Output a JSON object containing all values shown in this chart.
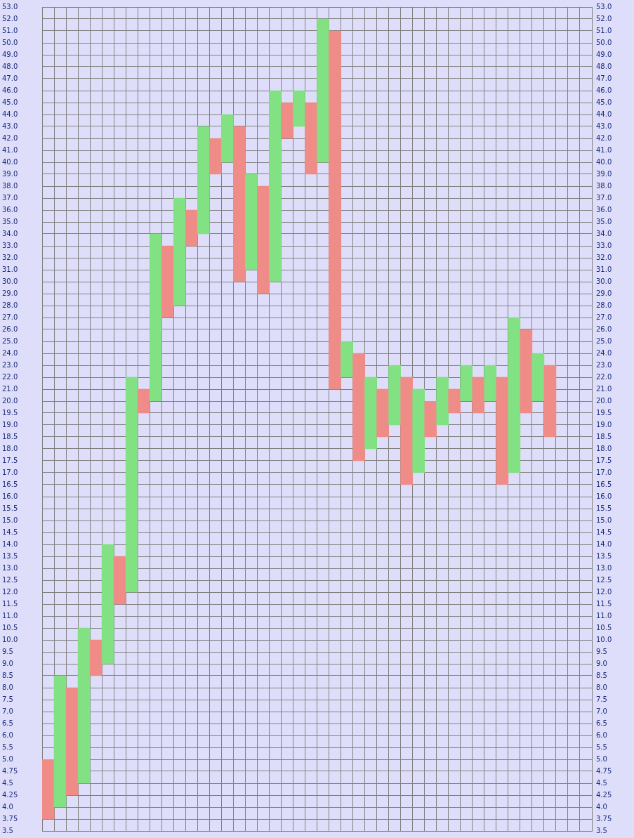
{
  "chart_data": [
    {
      "type": "bar",
      "categories": [
        null,
        null,
        null,
        null,
        null,
        null,
        null,
        null,
        null,
        null,
        null,
        null,
        null,
        null,
        null,
        null,
        null,
        null,
        null,
        null,
        null,
        null,
        null,
        null,
        null,
        null,
        null,
        null,
        null,
        null,
        null,
        null,
        null,
        null,
        null,
        null,
        null,
        null,
        null,
        null,
        null,
        null,
        null,
        null,
        null,
        null
      ],
      "base": [
        null,
        null,
        null,
        null,
        null,
        null,
        null,
        20,
        20,
        20,
        27,
        28,
        33,
        34,
        39,
        40,
        30,
        31,
        29,
        30,
        42,
        43,
        39,
        40,
        21,
        22,
        20,
        20,
        20,
        20,
        20,
        20,
        null,
        20,
        20,
        20,
        20,
        20,
        20,
        20,
        20,
        20,
        20,
        null,
        null,
        null
      ],
      "values": [
        null,
        null,
        null,
        null,
        null,
        null,
        null,
        2,
        1,
        14,
        6,
        9,
        3,
        9,
        3,
        4,
        13,
        8,
        9,
        16,
        3,
        3,
        6,
        12,
        30,
        3,
        4,
        2,
        1,
        3,
        2,
        1,
        null,
        2,
        1,
        3,
        2,
        3,
        2,
        7,
        6,
        4,
        3,
        null,
        null,
        null
      ],
      "colors": [
        null,
        null,
        null,
        null,
        null,
        null,
        null,
        "#82e182",
        "#f08c87",
        "#82e182",
        "#f08c87",
        "#82e182",
        "#f08c87",
        "#82e182",
        "#f08c87",
        "#82e182",
        "#f08c87",
        "#82e182",
        "#f08c87",
        "#82e182",
        "#f08c87",
        "#82e182",
        "#f08c87",
        "#82e182",
        "#f08c87",
        "#82e182",
        "#f08c87",
        "#82e182",
        "#f08c87",
        "#82e182",
        "#f08c87",
        "#82e182",
        null,
        "#82e182",
        "#f08c87",
        "#82e182",
        "#f08c87",
        "#82e182",
        "#f08c87",
        "#82e182",
        "#f08c87",
        "#82e182",
        "#f08c87",
        null,
        null,
        null
      ],
      "ylim": [
        20,
        53
      ],
      "yticks": [
        {
          "value": 20,
          "label": "20.0"
        },
        {
          "value": 21,
          "label": "21.0"
        },
        {
          "value": 22,
          "label": "22.0"
        },
        {
          "value": 23,
          "label": "23.0"
        },
        {
          "value": 24,
          "label": "24.0"
        },
        {
          "value": 25,
          "label": "25.0"
        },
        {
          "value": 26,
          "label": "26.0"
        },
        {
          "value": 27,
          "label": "27.0"
        },
        {
          "value": 28,
          "label": "28.0"
        },
        {
          "value": 29,
          "label": "29.0"
        },
        {
          "value": 30,
          "label": "30.0"
        },
        {
          "value": 31,
          "label": "31.0"
        },
        {
          "value": 32,
          "label": "32.0"
        },
        {
          "value": 33,
          "label": "33.0"
        },
        {
          "value": 34,
          "label": "34.0"
        },
        {
          "value": 35,
          "label": "35.0"
        },
        {
          "value": 36,
          "label": "36.0"
        },
        {
          "value": 37,
          "label": "37.0"
        },
        {
          "value": 38,
          "label": "38.0"
        },
        {
          "value": 39,
          "label": "39.0"
        },
        {
          "value": 40,
          "label": "40.0"
        },
        {
          "value": 41,
          "label": "41.0"
        },
        {
          "value": 42,
          "label": "42.0"
        },
        {
          "value": 43,
          "label": "43.0"
        },
        {
          "value": 44,
          "label": "44.0"
        },
        {
          "value": 45,
          "label": "45.0"
        },
        {
          "value": 46,
          "label": "46.0"
        },
        {
          "value": 47,
          "label": "47.0"
        },
        {
          "value": 48,
          "label": "48.0"
        },
        {
          "value": 49,
          "label": "49.0"
        },
        {
          "value": 50,
          "label": "50.0"
        },
        {
          "value": 51,
          "label": "51.0"
        },
        {
          "value": 52,
          "label": "52.0"
        },
        {
          "value": 53,
          "label": "53.0"
        }
      ],
      "y2lim": [
        20,
        53
      ],
      "y2ticks": [
        {
          "value": 20,
          "label": "20.0"
        },
        {
          "value": 21,
          "label": "21.0"
        },
        {
          "value": 22,
          "label": "22.0"
        },
        {
          "value": 23,
          "label": "23.0"
        },
        {
          "value": 24,
          "label": "24.0"
        },
        {
          "value": 25,
          "label": "25.0"
        },
        {
          "value": 26,
          "label": "26.0"
        },
        {
          "value": 27,
          "label": "27.0"
        },
        {
          "value": 28,
          "label": "28.0"
        },
        {
          "value": 29,
          "label": "29.0"
        },
        {
          "value": 30,
          "label": "30.0"
        },
        {
          "value": 31,
          "label": "31.0"
        },
        {
          "value": 32,
          "label": "32.0"
        },
        {
          "value": 33,
          "label": "33.0"
        },
        {
          "value": 34,
          "label": "34.0"
        },
        {
          "value": 35,
          "label": "35.0"
        },
        {
          "value": 36,
          "label": "36.0"
        },
        {
          "value": 37,
          "label": "37.0"
        },
        {
          "value": 38,
          "label": "38.0"
        },
        {
          "value": 39,
          "label": "39.0"
        },
        {
          "value": 40,
          "label": "40.0"
        },
        {
          "value": 41,
          "label": "41.0"
        },
        {
          "value": 42,
          "label": "42.0"
        },
        {
          "value": 43,
          "label": "43.0"
        },
        {
          "value": 44,
          "label": "44.0"
        },
        {
          "value": 45,
          "label": "45.0"
        },
        {
          "value": 46,
          "label": "46.0"
        },
        {
          "value": 47,
          "label": "47.0"
        },
        {
          "value": 48,
          "label": "48.0"
        },
        {
          "value": 49,
          "label": "49.0"
        },
        {
          "value": 50,
          "label": "50.0"
        },
        {
          "value": 51,
          "label": "51.0"
        },
        {
          "value": 52,
          "label": "52.0"
        },
        {
          "value": 53,
          "label": "53.0"
        }
      ],
      "grid": true,
      "tick_labels": "y"
    },
    {
      "type": "bar",
      "categories": [
        null,
        null,
        null,
        null,
        null,
        null,
        null,
        null,
        null,
        null,
        null,
        null,
        null,
        null,
        null,
        null,
        null,
        null,
        null,
        null,
        null,
        null,
        null,
        null,
        null,
        null,
        null,
        null,
        null,
        null,
        null,
        null,
        null,
        null,
        null,
        null,
        null,
        null,
        null,
        null,
        null,
        null,
        null,
        null,
        null,
        null
      ],
      "base": [
        null,
        5,
        5,
        5,
        8.5,
        9,
        11.5,
        12,
        19.5,
        null,
        null,
        null,
        null,
        null,
        null,
        null,
        null,
        null,
        null,
        null,
        null,
        null,
        null,
        null,
        null,
        null,
        17.5,
        18,
        18.5,
        19,
        16.5,
        17,
        18.5,
        19,
        19.5,
        null,
        19.5,
        null,
        16.5,
        17,
        19.5,
        null,
        18.5,
        null,
        null,
        null
      ],
      "values": [
        null,
        3.5,
        3,
        5.5,
        1.5,
        5,
        2,
        8,
        0.5,
        null,
        null,
        null,
        null,
        null,
        null,
        null,
        null,
        null,
        null,
        null,
        null,
        null,
        null,
        null,
        null,
        null,
        2.5,
        2,
        1.5,
        1,
        3.5,
        3,
        1.5,
        1,
        0.5,
        null,
        0.5,
        null,
        3.5,
        3,
        0.5,
        null,
        1.5,
        null,
        null,
        null
      ],
      "colors": [
        null,
        "#82e182",
        "#f08c87",
        "#82e182",
        "#f08c87",
        "#82e182",
        "#f08c87",
        "#82e182",
        "#f08c87",
        null,
        null,
        null,
        null,
        null,
        null,
        null,
        null,
        null,
        null,
        null,
        null,
        null,
        null,
        null,
        null,
        null,
        "#f08c87",
        "#82e182",
        "#f08c87",
        "#82e182",
        "#f08c87",
        "#82e182",
        "#f08c87",
        "#82e182",
        "#f08c87",
        null,
        "#f08c87",
        null,
        "#f08c87",
        "#82e182",
        "#f08c87",
        null,
        "#f08c87",
        null,
        null,
        null
      ],
      "ylim": [
        5,
        20
      ],
      "yticks": [
        {
          "value": 5,
          "label": "5.0"
        },
        5.5,
        {
          "value": 6,
          "label": "6.0"
        },
        6.5,
        {
          "value": 7,
          "label": "7.0"
        },
        7.5,
        {
          "value": 8,
          "label": "8.0"
        },
        8.5,
        {
          "value": 9,
          "label": "9.0"
        },
        9.5,
        {
          "value": 10,
          "label": "10.0"
        },
        10.5,
        {
          "value": 11,
          "label": "11.0"
        },
        11.5,
        {
          "value": 12,
          "label": "12.0"
        },
        12.5,
        {
          "value": 13,
          "label": "13.0"
        },
        13.5,
        {
          "value": 14,
          "label": "14.0"
        },
        14.5,
        {
          "value": 15,
          "label": "15.0"
        },
        15.5,
        {
          "value": 16,
          "label": "16.0"
        },
        16.5,
        {
          "value": 17,
          "label": "17.0"
        },
        17.5,
        {
          "value": 18,
          "label": "18.0"
        },
        18.5,
        {
          "value": 19,
          "label": "19.0"
        },
        19.5
      ],
      "y2lim": [
        5,
        20
      ],
      "y2ticks": [
        {
          "value": 5,
          "label": "5.0"
        },
        5.5,
        {
          "value": 6,
          "label": "6.0"
        },
        6.5,
        {
          "value": 7,
          "label": "7.0"
        },
        7.5,
        {
          "value": 8,
          "label": "8.0"
        },
        8.5,
        {
          "value": 9,
          "label": "9.0"
        },
        9.5,
        {
          "value": 10,
          "label": "10.0"
        },
        10.5,
        {
          "value": 11,
          "label": "11.0"
        },
        11.5,
        {
          "value": 12,
          "label": "12.0"
        },
        12.5,
        {
          "value": 13,
          "label": "13.0"
        },
        13.5,
        {
          "value": 14,
          "label": "14.0"
        },
        14.5,
        {
          "value": 15,
          "label": "15.0"
        },
        15.5,
        {
          "value": 16,
          "label": "16.0"
        },
        16.5,
        {
          "value": 17,
          "label": "17.0"
        },
        17.5,
        {
          "value": 18,
          "label": "18.0"
        },
        18.5,
        {
          "value": 19,
          "label": "19.0"
        },
        19.5
      ],
      "grid": true,
      "tick_labels": "y"
    },
    {
      "type": "bar",
      "categories": [
        null,
        null,
        null,
        null,
        null,
        null,
        null,
        null,
        null,
        null,
        null,
        null,
        null,
        null,
        null,
        null,
        null,
        null,
        null,
        null,
        null,
        null,
        null,
        null,
        null,
        null,
        null,
        null,
        null,
        null,
        null,
        null,
        null,
        null,
        null,
        null,
        null,
        null,
        null,
        null,
        null,
        null,
        null,
        null,
        null,
        null
      ],
      "base": [
        3.75,
        4,
        4.25,
        4.5,
        null,
        null,
        null,
        null,
        null,
        null,
        null,
        null,
        null,
        null,
        null,
        null,
        null,
        null,
        null,
        null,
        null,
        null,
        null,
        null,
        null,
        null,
        null,
        null,
        null,
        null,
        null,
        null,
        null,
        null,
        null,
        null,
        null,
        null,
        null,
        null,
        null,
        null,
        null,
        null,
        null,
        null
      ],
      "values": [
        1.25,
        1,
        0.75,
        0.5,
        null,
        null,
        null,
        null,
        null,
        null,
        null,
        null,
        null,
        null,
        null,
        null,
        null,
        null,
        null,
        null,
        null,
        null,
        null,
        null,
        null,
        null,
        null,
        null,
        null,
        null,
        null,
        null,
        null,
        null,
        null,
        null,
        null,
        null,
        null,
        null,
        null,
        null,
        null,
        null,
        null,
        null
      ],
      "colors": [
        "#f08c87",
        "#82e182",
        "#f08c87",
        "#82e182",
        null,
        null,
        null,
        null,
        null,
        null,
        null,
        null,
        null,
        null,
        null,
        null,
        null,
        null,
        null,
        null,
        null,
        null,
        null,
        null,
        null,
        null,
        null,
        null,
        null,
        null,
        null,
        null,
        null,
        null,
        null,
        null,
        null,
        null,
        null,
        null,
        null,
        null,
        null,
        null,
        null,
        null
      ],
      "ylim": [
        3.5,
        5
      ],
      "yticks": [
        3.5,
        3.75,
        {
          "value": 4,
          "label": "4.0"
        },
        4.25,
        4.5,
        4.75
      ],
      "y2lim": [
        3.5,
        5
      ],
      "y2ticks": [
        3.5,
        3.75,
        {
          "value": 4,
          "label": "4.0"
        },
        4.25,
        4.5,
        4.75
      ],
      "grid": true,
      "tick_labels": "y"
    }
  ]
}
